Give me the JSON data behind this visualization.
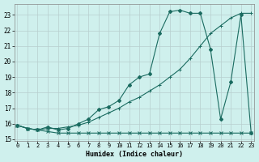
{
  "xlabel": "Humidex (Indice chaleur)",
  "bg_color": "#cff0ed",
  "grid_color": "#b8cece",
  "line_color": "#1a6b60",
  "xlim": [
    -0.3,
    23.3
  ],
  "ylim": [
    14.9,
    23.7
  ],
  "yticks": [
    15,
    16,
    17,
    18,
    19,
    20,
    21,
    22,
    23
  ],
  "xticks": [
    0,
    1,
    2,
    3,
    4,
    5,
    6,
    7,
    8,
    9,
    10,
    11,
    12,
    13,
    14,
    15,
    16,
    17,
    18,
    19,
    20,
    21,
    22,
    23
  ],
  "s1_x": [
    0,
    1,
    2,
    3,
    4,
    5,
    6,
    7,
    8,
    9,
    10,
    11,
    12,
    13,
    14,
    15,
    16,
    17,
    18,
    19,
    20,
    21,
    22,
    23
  ],
  "s1_y": [
    15.9,
    15.7,
    15.6,
    15.5,
    15.4,
    15.4,
    15.4,
    15.4,
    15.4,
    15.4,
    15.4,
    15.4,
    15.4,
    15.4,
    15.4,
    15.4,
    15.4,
    15.4,
    15.4,
    15.4,
    15.4,
    15.4,
    15.4,
    15.4
  ],
  "s2_x": [
    0,
    1,
    2,
    3,
    4,
    5,
    6,
    7,
    8,
    9,
    10,
    11,
    12,
    13,
    14,
    15,
    16,
    17,
    18,
    19,
    20,
    21,
    22,
    23
  ],
  "s2_y": [
    15.9,
    15.7,
    15.6,
    15.7,
    15.7,
    15.8,
    15.9,
    16.1,
    16.4,
    16.7,
    17.0,
    17.4,
    17.7,
    18.1,
    18.5,
    19.0,
    19.5,
    20.2,
    21.0,
    21.8,
    22.3,
    22.8,
    23.1,
    23.1
  ],
  "s3_x": [
    0,
    1,
    2,
    3,
    4,
    5,
    6,
    7,
    8,
    9,
    10,
    11,
    12,
    13,
    14,
    15,
    16,
    17,
    18,
    19,
    20,
    21,
    22,
    23
  ],
  "s3_y": [
    15.9,
    15.7,
    15.6,
    15.8,
    15.6,
    15.7,
    16.0,
    16.3,
    16.9,
    17.1,
    17.5,
    18.5,
    19.0,
    19.2,
    21.8,
    23.2,
    23.3,
    23.1,
    23.1,
    20.8,
    16.3,
    18.7,
    23.0,
    15.4
  ]
}
